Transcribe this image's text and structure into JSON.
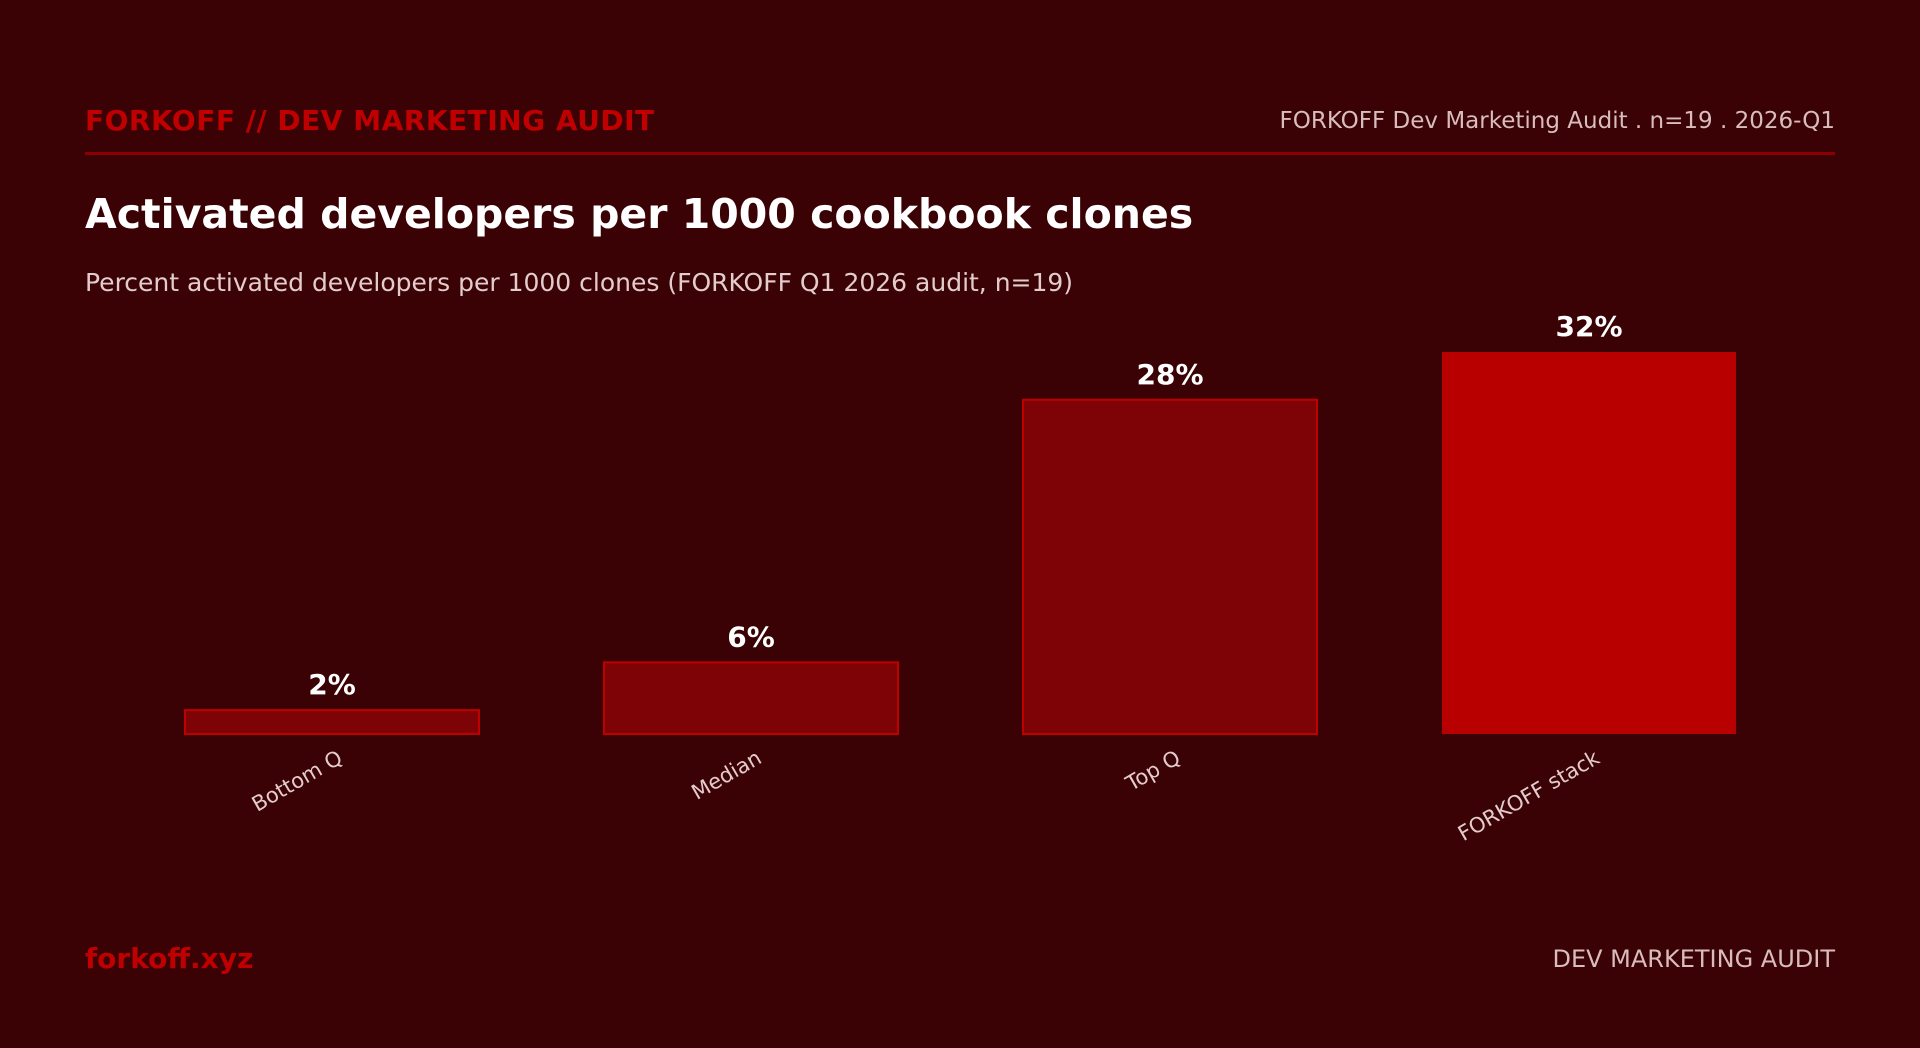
{
  "header": {
    "brand": "FORKOFF // DEV MARKETING AUDIT",
    "meta": "FORKOFF Dev Marketing Audit . n=19 . 2026-Q1"
  },
  "chart_data": {
    "type": "bar",
    "title": "Activated developers per 1000 cookbook clones",
    "subtitle": "Percent activated developers per 1000 clones (FORKOFF Q1 2026 audit, n=19)",
    "categories": [
      "Bottom Q",
      "Median",
      "Top Q",
      "FORKOFF stack"
    ],
    "values": [
      2,
      6,
      28,
      32
    ],
    "value_labels": [
      "2%",
      "6%",
      "28%",
      "32%"
    ],
    "ylim": [
      0,
      32
    ],
    "grid": false,
    "colors": {
      "benchmark_fill": "#7d0306",
      "benchmark_stroke": "#c00000",
      "highlight_fill": "#b80000",
      "value_label": "#ffffff",
      "category_label": "#e4cccc"
    }
  },
  "footer": {
    "brand": "forkoff.xyz",
    "label": "DEV MARKETING AUDIT"
  }
}
